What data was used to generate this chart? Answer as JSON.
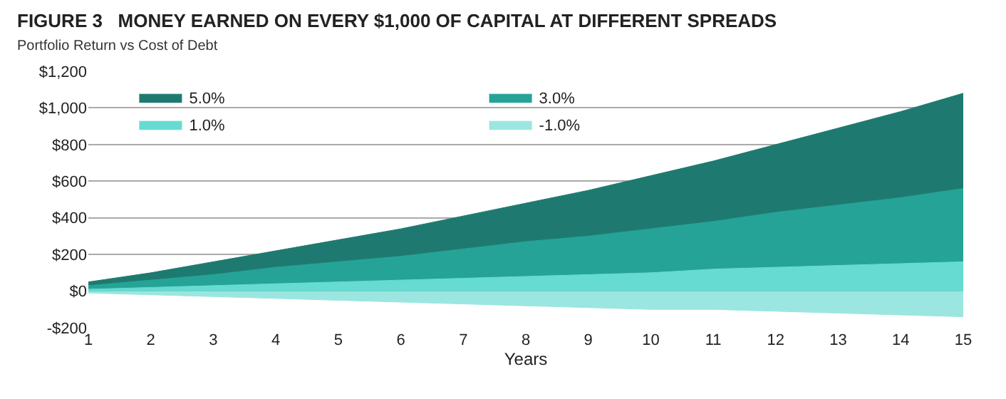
{
  "chart_data": {
    "type": "area",
    "title": "FIGURE 3   MONEY EARNED ON EVERY $1,000 OF CAPITAL AT DIFFERENT SPREADS",
    "subtitle": "Portfolio Return vs Cost of Debt",
    "xlabel": "Years",
    "x": [
      1,
      2,
      3,
      4,
      5,
      6,
      7,
      8,
      9,
      10,
      11,
      12,
      13,
      14,
      15
    ],
    "series": [
      {
        "name": "5.0%",
        "color": "#1e7a70",
        "values": [
          50,
          100,
          160,
          220,
          280,
          340,
          410,
          480,
          550,
          630,
          710,
          800,
          890,
          980,
          1080
        ]
      },
      {
        "name": "3.0%",
        "color": "#26a397",
        "values": [
          30,
          60,
          90,
          130,
          160,
          190,
          230,
          270,
          300,
          340,
          380,
          430,
          470,
          510,
          560
        ]
      },
      {
        "name": "1.0%",
        "color": "#66dbd2",
        "values": [
          10,
          20,
          30,
          40,
          50,
          60,
          70,
          80,
          90,
          100,
          120,
          130,
          140,
          150,
          160
        ]
      },
      {
        "name": "-1.0%",
        "color": "#9be6e0",
        "values": [
          -10,
          -20,
          -30,
          -40,
          -50,
          -60,
          -70,
          -80,
          -90,
          -100,
          -100,
          -110,
          -120,
          -130,
          -140
        ]
      }
    ],
    "xlim": [
      1,
      15
    ],
    "xticks": [
      1,
      2,
      3,
      4,
      5,
      6,
      7,
      8,
      9,
      10,
      11,
      12,
      13,
      14,
      15
    ],
    "ylim": [
      -200,
      1200
    ],
    "yticks": [
      {
        "value": -200,
        "label": "-$200"
      },
      {
        "value": 0,
        "label": "$0"
      },
      {
        "value": 200,
        "label": "$200"
      },
      {
        "value": 400,
        "label": "$400"
      },
      {
        "value": 600,
        "label": "$600"
      },
      {
        "value": 800,
        "label": "$800"
      },
      {
        "value": 1000,
        "label": "$1,000"
      },
      {
        "value": 1200,
        "label": "$1,200"
      }
    ],
    "grid": "y",
    "legend": "top left",
    "marker": "none"
  }
}
